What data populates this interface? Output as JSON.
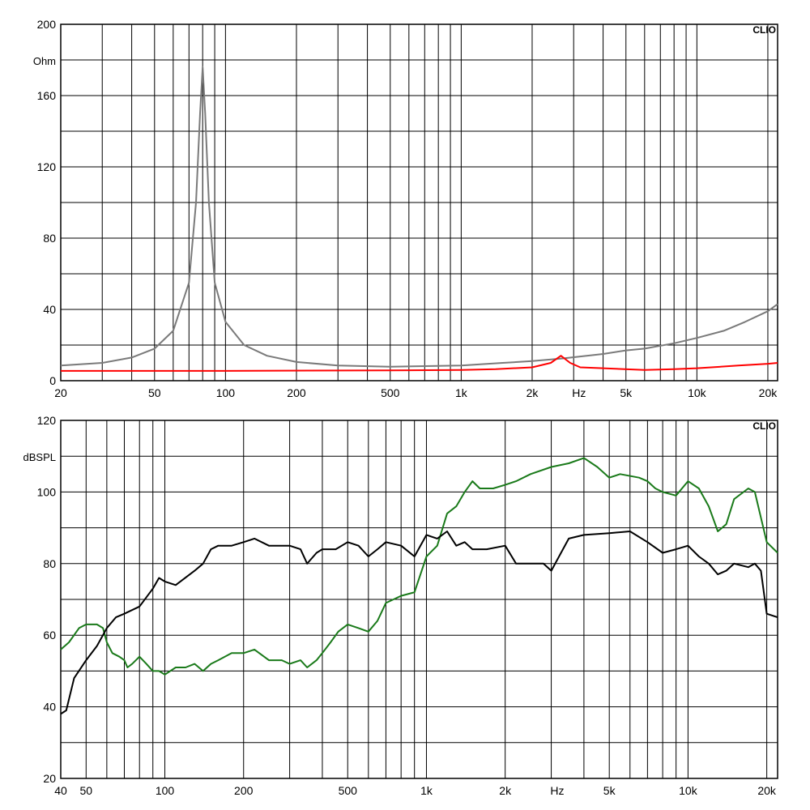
{
  "chart_data": [
    {
      "type": "line",
      "brand": "CLIO",
      "xscale": "log",
      "xlim": [
        20,
        22000
      ],
      "ylim": [
        0,
        200
      ],
      "ylabel": "Ohm",
      "x_unit": "Hz",
      "grid": true,
      "x_ticks": [
        {
          "value": 20,
          "label": "20"
        },
        {
          "value": 50,
          "label": "50"
        },
        {
          "value": 100,
          "label": "100"
        },
        {
          "value": 200,
          "label": "200"
        },
        {
          "value": 500,
          "label": "500"
        },
        {
          "value": 1000,
          "label": "1k"
        },
        {
          "value": 2000,
          "label": "2k"
        },
        {
          "value": 5000,
          "label": "5k"
        },
        {
          "value": 10000,
          "label": "10k"
        },
        {
          "value": 20000,
          "label": "20k"
        }
      ],
      "y_ticks": [
        {
          "value": 0,
          "label": "0"
        },
        {
          "value": 40,
          "label": "40"
        },
        {
          "value": 80,
          "label": "80"
        },
        {
          "value": 120,
          "label": "120"
        },
        {
          "value": 160,
          "label": "160"
        },
        {
          "value": 200,
          "label": "200"
        }
      ],
      "series": [
        {
          "color": "#7a7a7a",
          "points": [
            [
              20,
              8.5
            ],
            [
              30,
              10
            ],
            [
              40,
              13
            ],
            [
              50,
              18
            ],
            [
              60,
              28
            ],
            [
              70,
              55
            ],
            [
              75,
              100
            ],
            [
              78,
              150
            ],
            [
              80,
              176
            ],
            [
              82,
              150
            ],
            [
              85,
              100
            ],
            [
              90,
              55
            ],
            [
              100,
              33
            ],
            [
              120,
              20
            ],
            [
              150,
              14
            ],
            [
              200,
              10.5
            ],
            [
              300,
              8.5
            ],
            [
              500,
              7.8
            ],
            [
              700,
              8.2
            ],
            [
              1000,
              8.5
            ],
            [
              1500,
              10
            ],
            [
              2000,
              11
            ],
            [
              2700,
              12.5
            ],
            [
              4000,
              15
            ],
            [
              5000,
              17
            ],
            [
              6000,
              18
            ],
            [
              8000,
              21
            ],
            [
              10000,
              24
            ],
            [
              13000,
              28
            ],
            [
              16000,
              33
            ],
            [
              20000,
              39
            ],
            [
              22000,
              43
            ]
          ]
        },
        {
          "color": "#ff0000",
          "points": [
            [
              20,
              5.5
            ],
            [
              100,
              5.5
            ],
            [
              500,
              5.8
            ],
            [
              1000,
              6
            ],
            [
              1400,
              6.5
            ],
            [
              2000,
              7.5
            ],
            [
              2400,
              10
            ],
            [
              2650,
              14
            ],
            [
              2900,
              10
            ],
            [
              3200,
              7.5
            ],
            [
              4000,
              7
            ],
            [
              6000,
              6
            ],
            [
              8000,
              6.5
            ],
            [
              10000,
              7
            ],
            [
              15000,
              8.5
            ],
            [
              20000,
              9.5
            ],
            [
              22000,
              10
            ]
          ]
        }
      ]
    },
    {
      "type": "line",
      "brand": "CLIO",
      "xscale": "log",
      "xlim": [
        40,
        22000
      ],
      "ylim": [
        20,
        120
      ],
      "ylabel": "dBSPL",
      "x_unit": "Hz",
      "grid": true,
      "x_ticks": [
        {
          "value": 40,
          "label": "40"
        },
        {
          "value": 50,
          "label": "50"
        },
        {
          "value": 100,
          "label": "100"
        },
        {
          "value": 200,
          "label": "200"
        },
        {
          "value": 500,
          "label": "500"
        },
        {
          "value": 1000,
          "label": "1k"
        },
        {
          "value": 2000,
          "label": "2k"
        },
        {
          "value": 5000,
          "label": "5k"
        },
        {
          "value": 10000,
          "label": "10k"
        },
        {
          "value": 20000,
          "label": "20k"
        }
      ],
      "y_ticks": [
        {
          "value": 20,
          "label": "20"
        },
        {
          "value": 40,
          "label": "40"
        },
        {
          "value": 60,
          "label": "60"
        },
        {
          "value": 80,
          "label": "80"
        },
        {
          "value": 100,
          "label": "100"
        },
        {
          "value": 120,
          "label": "120"
        }
      ],
      "series": [
        {
          "color": "#1a7a1a",
          "points": [
            [
              40,
              56
            ],
            [
              43,
              58
            ],
            [
              47,
              62
            ],
            [
              50,
              63
            ],
            [
              55,
              63
            ],
            [
              58,
              62
            ],
            [
              60,
              58
            ],
            [
              63,
              55
            ],
            [
              67,
              54
            ],
            [
              70,
              53
            ],
            [
              72,
              51
            ],
            [
              75,
              52
            ],
            [
              80,
              54
            ],
            [
              85,
              52
            ],
            [
              90,
              50
            ],
            [
              95,
              50
            ],
            [
              100,
              49
            ],
            [
              110,
              51
            ],
            [
              120,
              51
            ],
            [
              130,
              52
            ],
            [
              140,
              50
            ],
            [
              150,
              52
            ],
            [
              160,
              53
            ],
            [
              180,
              55
            ],
            [
              200,
              55
            ],
            [
              220,
              56
            ],
            [
              250,
              53
            ],
            [
              280,
              53
            ],
            [
              300,
              52
            ],
            [
              330,
              53
            ],
            [
              350,
              51
            ],
            [
              380,
              53
            ],
            [
              400,
              55
            ],
            [
              430,
              58
            ],
            [
              460,
              61
            ],
            [
              500,
              63
            ],
            [
              550,
              62
            ],
            [
              600,
              61
            ],
            [
              650,
              64
            ],
            [
              700,
              69
            ],
            [
              800,
              71
            ],
            [
              900,
              72
            ],
            [
              1000,
              82
            ],
            [
              1100,
              85
            ],
            [
              1200,
              94
            ],
            [
              1300,
              96
            ],
            [
              1400,
              100
            ],
            [
              1500,
              103
            ],
            [
              1600,
              101
            ],
            [
              1800,
              101
            ],
            [
              2000,
              102
            ],
            [
              2200,
              103
            ],
            [
              2500,
              105
            ],
            [
              3000,
              107
            ],
            [
              3500,
              108
            ],
            [
              4000,
              109.5
            ],
            [
              4500,
              107
            ],
            [
              5000,
              104
            ],
            [
              5500,
              105
            ],
            [
              6500,
              104
            ],
            [
              7000,
              103
            ],
            [
              7500,
              101
            ],
            [
              8000,
              100
            ],
            [
              9000,
              99
            ],
            [
              10000,
              103
            ],
            [
              11000,
              101
            ],
            [
              12000,
              96
            ],
            [
              13000,
              89
            ],
            [
              14000,
              91
            ],
            [
              15000,
              98
            ],
            [
              17000,
              101
            ],
            [
              18000,
              100
            ],
            [
              20000,
              86
            ],
            [
              22000,
              83
            ]
          ]
        },
        {
          "color": "#000000",
          "points": [
            [
              40,
              38
            ],
            [
              42,
              39
            ],
            [
              45,
              48
            ],
            [
              50,
              53
            ],
            [
              55,
              57
            ],
            [
              60,
              62
            ],
            [
              65,
              65
            ],
            [
              70,
              66
            ],
            [
              80,
              68
            ],
            [
              90,
              73
            ],
            [
              95,
              76
            ],
            [
              100,
              75
            ],
            [
              110,
              74
            ],
            [
              130,
              78
            ],
            [
              140,
              80
            ],
            [
              150,
              84
            ],
            [
              160,
              85
            ],
            [
              180,
              85
            ],
            [
              200,
              86
            ],
            [
              220,
              87
            ],
            [
              250,
              85
            ],
            [
              280,
              85
            ],
            [
              300,
              85
            ],
            [
              330,
              84
            ],
            [
              350,
              80
            ],
            [
              380,
              83
            ],
            [
              400,
              84
            ],
            [
              450,
              84
            ],
            [
              500,
              86
            ],
            [
              550,
              85
            ],
            [
              600,
              82
            ],
            [
              650,
              84
            ],
            [
              700,
              86
            ],
            [
              800,
              85
            ],
            [
              900,
              82
            ],
            [
              1000,
              88
            ],
            [
              1100,
              87
            ],
            [
              1200,
              89
            ],
            [
              1300,
              85
            ],
            [
              1400,
              86
            ],
            [
              1500,
              84
            ],
            [
              1700,
              84
            ],
            [
              2000,
              85
            ],
            [
              2200,
              80
            ],
            [
              2500,
              80
            ],
            [
              2800,
              80
            ],
            [
              3000,
              78
            ],
            [
              3500,
              87
            ],
            [
              4000,
              88
            ],
            [
              5000,
              88.5
            ],
            [
              6000,
              89
            ],
            [
              7000,
              86
            ],
            [
              8000,
              83
            ],
            [
              9000,
              84
            ],
            [
              10000,
              85
            ],
            [
              11000,
              82
            ],
            [
              12000,
              80
            ],
            [
              13000,
              77
            ],
            [
              14000,
              78
            ],
            [
              15000,
              80
            ],
            [
              17000,
              79
            ],
            [
              18000,
              80
            ],
            [
              19000,
              78
            ],
            [
              20000,
              66
            ],
            [
              22000,
              65
            ]
          ]
        }
      ]
    }
  ]
}
